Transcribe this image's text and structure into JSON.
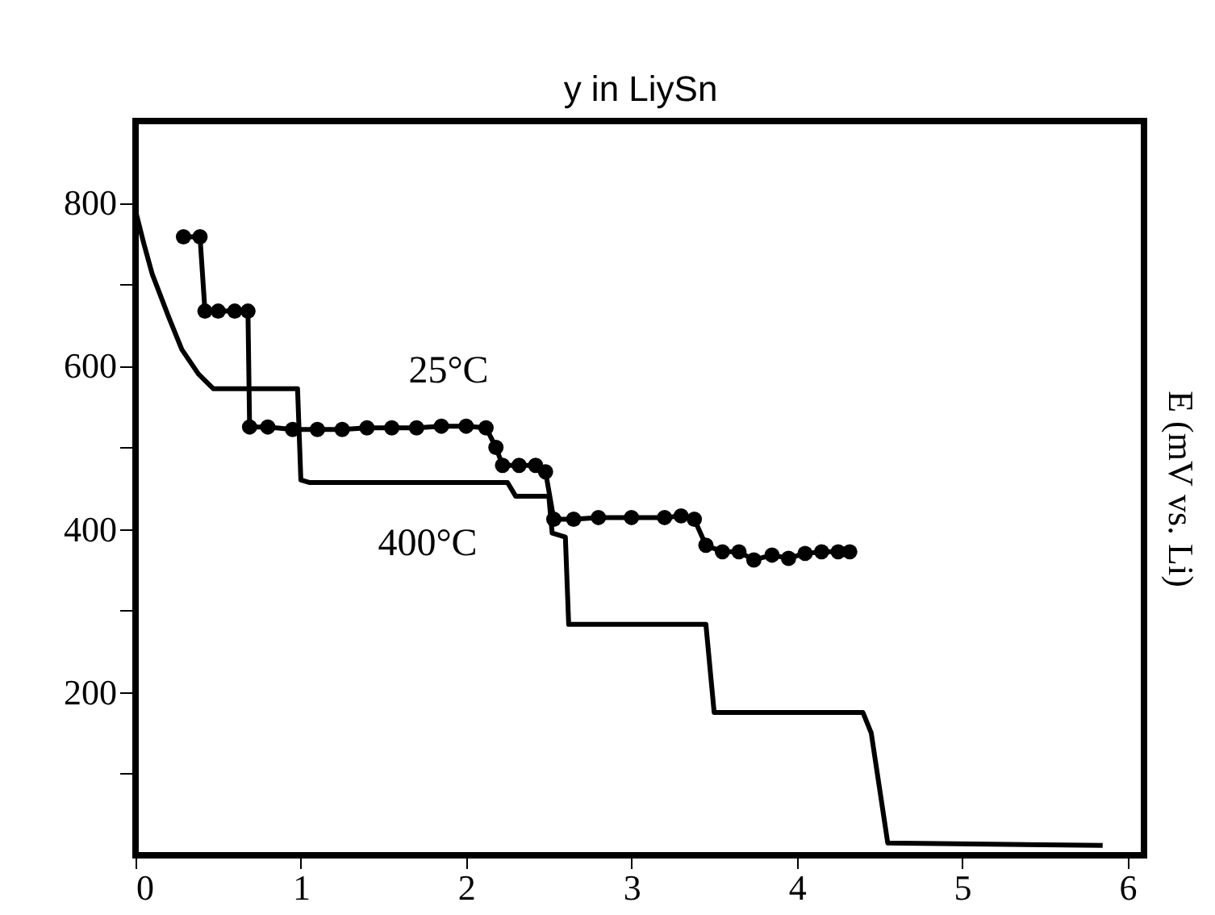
{
  "chart_data": {
    "type": "line",
    "xlabel": "y in LiySn",
    "ylabel": "E (mV vs. Li)",
    "xlim": [
      0,
      6.1
    ],
    "ylim": [
      0,
      900
    ],
    "xticks": [
      0,
      1,
      2,
      3,
      4,
      5,
      6
    ],
    "yticks": [
      {
        "value": 100,
        "label": null
      },
      200,
      {
        "value": 300,
        "label": null
      },
      400,
      {
        "value": 500,
        "label": null
      },
      600,
      {
        "value": 700,
        "label": null
      },
      800
    ],
    "grid": false,
    "legend": false,
    "series": [
      {
        "color": "#000000",
        "marker": "circle",
        "x": [
          0.29,
          0.39,
          0.42,
          0.5,
          0.6,
          0.68,
          0.69,
          0.8,
          0.95,
          1.1,
          1.25,
          1.4,
          1.55,
          1.7,
          1.85,
          2.0,
          2.12,
          2.18,
          2.22,
          2.32,
          2.42,
          2.48,
          2.53,
          2.65,
          2.8,
          3.0,
          3.2,
          3.3,
          3.38,
          3.45,
          3.55,
          3.65,
          3.74,
          3.85,
          3.95,
          4.05,
          4.15,
          4.25,
          4.32
        ],
        "values": [
          758,
          758,
          667,
          667,
          667,
          667,
          525,
          525,
          522,
          522,
          522,
          524,
          524,
          524,
          526,
          526,
          524,
          500,
          478,
          478,
          478,
          470,
          412,
          412,
          414,
          414,
          414,
          416,
          412,
          380,
          372,
          372,
          362,
          368,
          364,
          370,
          372,
          372,
          372
        ]
      },
      {
        "color": "#000000",
        "marker": "none",
        "x": [
          0,
          0.05,
          0.1,
          0.2,
          0.28,
          0.38,
          0.47,
          0.7,
          0.98,
          1.0,
          1.05,
          2.25,
          2.3,
          2.5,
          2.52,
          2.6,
          2.62,
          3.45,
          3.5,
          4.4,
          4.45,
          4.55,
          5.85
        ],
        "values": [
          790,
          750,
          713,
          660,
          620,
          590,
          572,
          572,
          572,
          460,
          457,
          457,
          440,
          440,
          395,
          390,
          283,
          283,
          175,
          175,
          150,
          15,
          12
        ]
      }
    ],
    "annotations": [
      "25°C",
      "400°C"
    ]
  }
}
